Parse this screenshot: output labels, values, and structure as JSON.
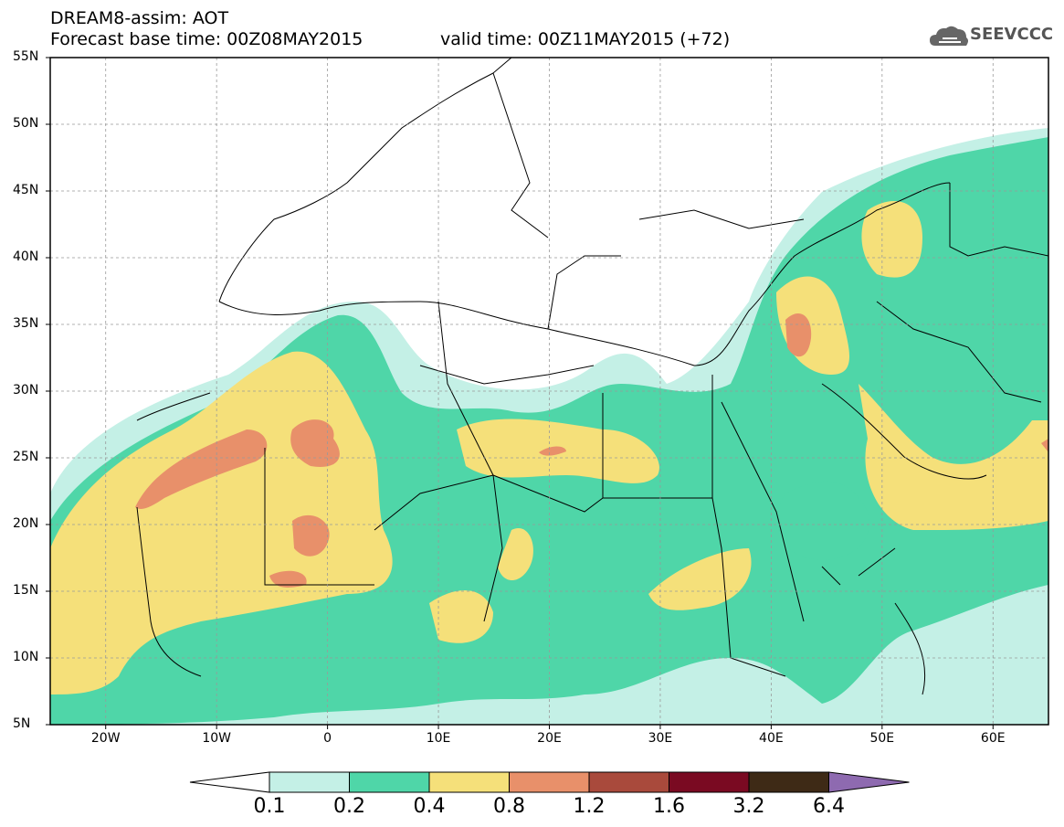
{
  "header": {
    "title": "DREAM8-assim: AOT",
    "base_time": "Forecast base time: 00Z08MAY2015",
    "valid_time": "valid time: 00Z11MAY2015 (+72)",
    "logo_text": "SEEVCCC"
  },
  "map": {
    "lon_range": [
      -25,
      65
    ],
    "lat_range": [
      5,
      55
    ],
    "lat_labels": [
      "55N",
      "50N",
      "45N",
      "40N",
      "35N",
      "30N",
      "25N",
      "20N",
      "15N",
      "10N",
      "5N"
    ],
    "lat_values": [
      55,
      50,
      45,
      40,
      35,
      30,
      25,
      20,
      15,
      10,
      5
    ],
    "lon_labels": [
      "20W",
      "10W",
      "0",
      "10E",
      "20E",
      "30E",
      "40E",
      "50E",
      "60E"
    ],
    "lon_values": [
      -20,
      -10,
      0,
      10,
      20,
      30,
      40,
      50,
      60
    ]
  },
  "colorbar": {
    "labels": [
      "0.1",
      "0.2",
      "0.4",
      "0.8",
      "1.2",
      "1.6",
      "3.2",
      "6.4"
    ],
    "colors": [
      "#ffffff",
      "#c4f0e6",
      "#4fd6a8",
      "#f5e07a",
      "#e8906a",
      "#a94a3c",
      "#7a0a22",
      "#3e2a16",
      "#8e6ab0"
    ]
  }
}
